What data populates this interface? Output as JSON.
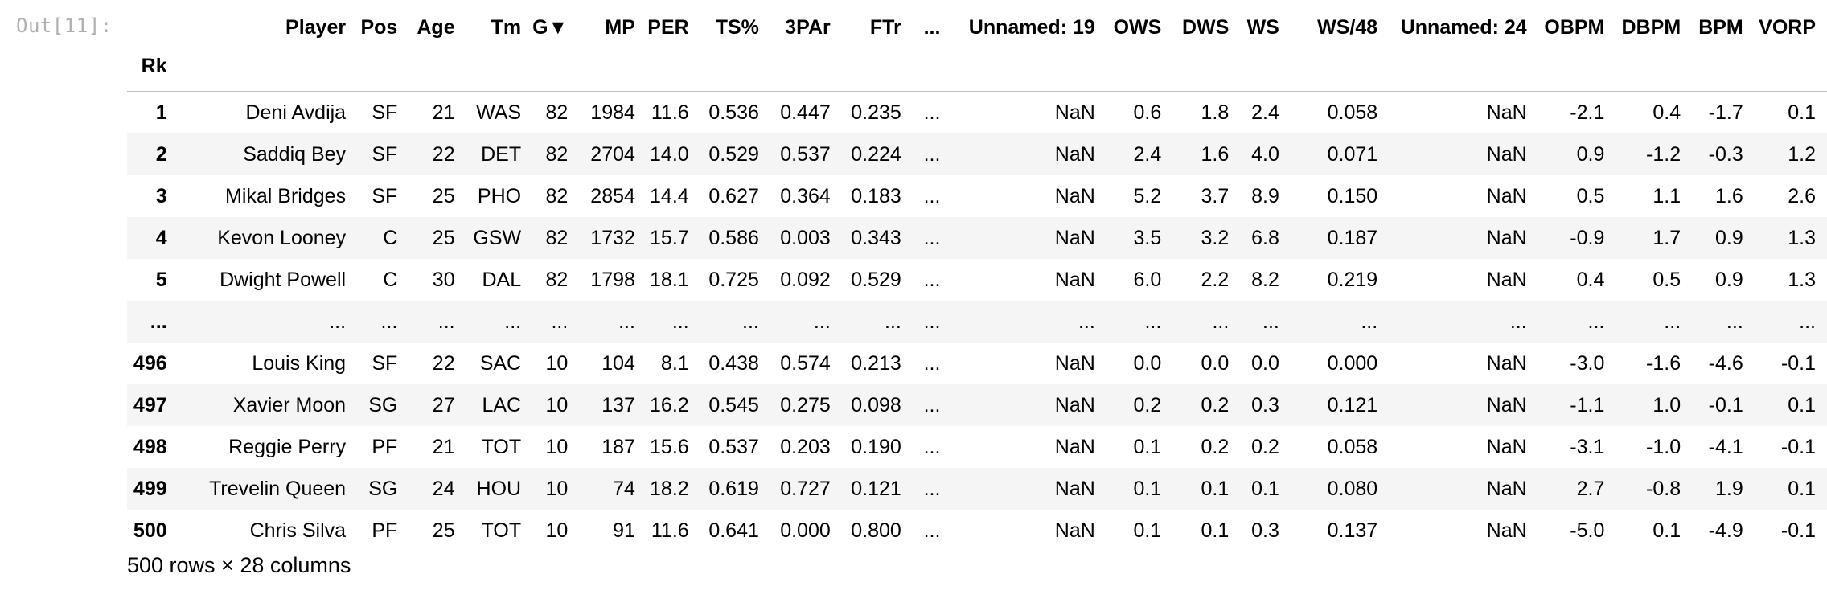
{
  "notebook": {
    "prompt": "Out[11]:"
  },
  "dataframe": {
    "index_name": "Rk",
    "columns": [
      "Player",
      "Pos",
      "Age",
      "Tm",
      "G▼",
      "MP",
      "PER",
      "TS%",
      "3PAr",
      "FTr",
      "...",
      "Unnamed: 19",
      "OWS",
      "DWS",
      "WS",
      "WS/48",
      "Unnamed: 24",
      "OBPM",
      "DBPM",
      "BPM",
      "VORP"
    ],
    "rows": [
      {
        "index": "1",
        "cells": [
          "Deni Avdija",
          "SF",
          "21",
          "WAS",
          "82",
          "1984",
          "11.6",
          "0.536",
          "0.447",
          "0.235",
          "...",
          "NaN",
          "0.6",
          "1.8",
          "2.4",
          "0.058",
          "NaN",
          "-2.1",
          "0.4",
          "-1.7",
          "0.1"
        ]
      },
      {
        "index": "2",
        "cells": [
          "Saddiq Bey",
          "SF",
          "22",
          "DET",
          "82",
          "2704",
          "14.0",
          "0.529",
          "0.537",
          "0.224",
          "...",
          "NaN",
          "2.4",
          "1.6",
          "4.0",
          "0.071",
          "NaN",
          "0.9",
          "-1.2",
          "-0.3",
          "1.2"
        ]
      },
      {
        "index": "3",
        "cells": [
          "Mikal Bridges",
          "SF",
          "25",
          "PHO",
          "82",
          "2854",
          "14.4",
          "0.627",
          "0.364",
          "0.183",
          "...",
          "NaN",
          "5.2",
          "3.7",
          "8.9",
          "0.150",
          "NaN",
          "0.5",
          "1.1",
          "1.6",
          "2.6"
        ]
      },
      {
        "index": "4",
        "cells": [
          "Kevon Looney",
          "C",
          "25",
          "GSW",
          "82",
          "1732",
          "15.7",
          "0.586",
          "0.003",
          "0.343",
          "...",
          "NaN",
          "3.5",
          "3.2",
          "6.8",
          "0.187",
          "NaN",
          "-0.9",
          "1.7",
          "0.9",
          "1.3"
        ]
      },
      {
        "index": "5",
        "cells": [
          "Dwight Powell",
          "C",
          "30",
          "DAL",
          "82",
          "1798",
          "18.1",
          "0.725",
          "0.092",
          "0.529",
          "...",
          "NaN",
          "6.0",
          "2.2",
          "8.2",
          "0.219",
          "NaN",
          "0.4",
          "0.5",
          "0.9",
          "1.3"
        ]
      },
      {
        "index": "...",
        "cells": [
          "...",
          "...",
          "...",
          "...",
          "...",
          "...",
          "...",
          "...",
          "...",
          "...",
          "...",
          "...",
          "...",
          "...",
          "...",
          "...",
          "...",
          "...",
          "...",
          "...",
          "..."
        ]
      },
      {
        "index": "496",
        "cells": [
          "Louis King",
          "SF",
          "22",
          "SAC",
          "10",
          "104",
          "8.1",
          "0.438",
          "0.574",
          "0.213",
          "...",
          "NaN",
          "0.0",
          "0.0",
          "0.0",
          "0.000",
          "NaN",
          "-3.0",
          "-1.6",
          "-4.6",
          "-0.1"
        ]
      },
      {
        "index": "497",
        "cells": [
          "Xavier Moon",
          "SG",
          "27",
          "LAC",
          "10",
          "137",
          "16.2",
          "0.545",
          "0.275",
          "0.098",
          "...",
          "NaN",
          "0.2",
          "0.2",
          "0.3",
          "0.121",
          "NaN",
          "-1.1",
          "1.0",
          "-0.1",
          "0.1"
        ]
      },
      {
        "index": "498",
        "cells": [
          "Reggie Perry",
          "PF",
          "21",
          "TOT",
          "10",
          "187",
          "15.6",
          "0.537",
          "0.203",
          "0.190",
          "...",
          "NaN",
          "0.1",
          "0.2",
          "0.2",
          "0.058",
          "NaN",
          "-3.1",
          "-1.0",
          "-4.1",
          "-0.1"
        ]
      },
      {
        "index": "499",
        "cells": [
          "Trevelin Queen",
          "SG",
          "24",
          "HOU",
          "10",
          "74",
          "18.2",
          "0.619",
          "0.727",
          "0.121",
          "...",
          "NaN",
          "0.1",
          "0.1",
          "0.1",
          "0.080",
          "NaN",
          "2.7",
          "-0.8",
          "1.9",
          "0.1"
        ]
      },
      {
        "index": "500",
        "cells": [
          "Chris Silva",
          "PF",
          "25",
          "TOT",
          "10",
          "91",
          "11.6",
          "0.641",
          "0.000",
          "0.800",
          "...",
          "NaN",
          "0.1",
          "0.1",
          "0.3",
          "0.137",
          "NaN",
          "-5.0",
          "0.1",
          "-4.9",
          "-0.1"
        ]
      }
    ],
    "shape_text": "500 rows × 28 columns"
  }
}
